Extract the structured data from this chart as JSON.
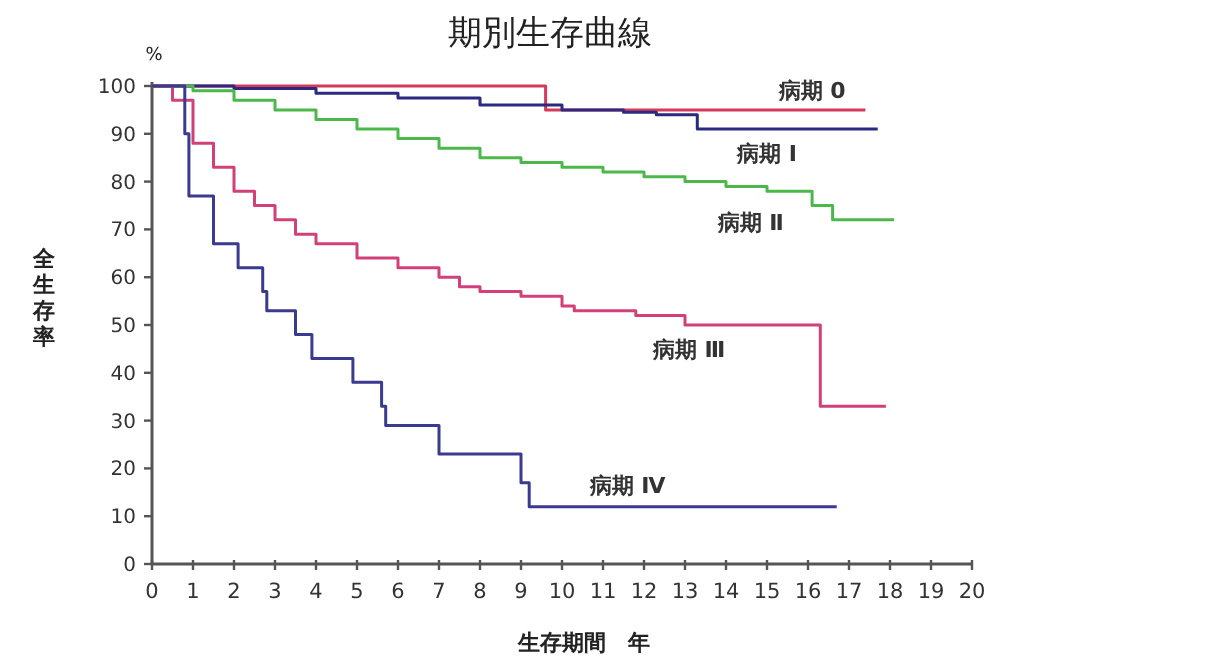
{
  "chart_data": {
    "type": "step",
    "title": "期別生存曲線",
    "xlabel": "生存期間　年",
    "ylabel": "全生存率",
    "annotations": [
      "%"
    ],
    "xlim": [
      0,
      20
    ],
    "ylim": [
      0,
      100
    ],
    "xticks": [
      0,
      1,
      2,
      3,
      4,
      5,
      6,
      7,
      8,
      9,
      10,
      11,
      12,
      13,
      14,
      15,
      16,
      17,
      18,
      19,
      20
    ],
    "yticks": [
      0,
      10,
      20,
      30,
      40,
      50,
      60,
      70,
      80,
      90,
      100
    ],
    "grid": false,
    "legend": false,
    "marker": "none",
    "line_style": "solid",
    "series": [
      {
        "name": "病期 0",
        "color": "#d63a5a",
        "x": [
          0,
          9.6,
          17.4
        ],
        "values": [
          100,
          95,
          95
        ]
      },
      {
        "name": "病期 Ⅰ",
        "color": "#2a2a80",
        "x": [
          0,
          2,
          4,
          6,
          8,
          10,
          11.5,
          12.3,
          13.3,
          17.7
        ],
        "values": [
          100,
          99.5,
          98.5,
          97.5,
          96,
          95,
          94.5,
          94,
          91,
          91
        ]
      },
      {
        "name": "病期 Ⅱ",
        "color": "#4cb84c",
        "x": [
          0,
          1,
          2,
          3,
          4,
          5,
          6,
          7,
          8,
          9,
          10,
          11,
          12,
          13,
          14,
          15,
          16.1,
          16.6,
          18.1
        ],
        "values": [
          100,
          99,
          97,
          95,
          93,
          91,
          89,
          87,
          85,
          84,
          83,
          82,
          81,
          80,
          79,
          78,
          75,
          72,
          72
        ]
      },
      {
        "name": "病期 Ⅲ",
        "color": "#d2407a",
        "x": [
          0,
          0.5,
          1,
          1.5,
          2,
          2.5,
          3,
          3.5,
          4,
          5,
          6,
          7,
          7.5,
          8,
          9,
          10,
          10.3,
          11.8,
          13,
          16.3,
          17.9
        ],
        "values": [
          100,
          97,
          88,
          83,
          78,
          75,
          72,
          69,
          67,
          64,
          62,
          60,
          58,
          57,
          56,
          54,
          53,
          52,
          50,
          33,
          33
        ]
      },
      {
        "name": "病期 Ⅳ",
        "color": "#3a3a90",
        "x": [
          0,
          0.8,
          0.9,
          1.5,
          2.1,
          2.7,
          2.8,
          3.5,
          3.9,
          4.9,
          5.6,
          5.7,
          7,
          9,
          9.2,
          16.7
        ],
        "values": [
          100,
          90,
          77,
          67,
          62,
          57,
          53,
          48,
          43,
          38,
          33,
          29,
          23,
          17,
          12,
          12
        ]
      }
    ]
  }
}
